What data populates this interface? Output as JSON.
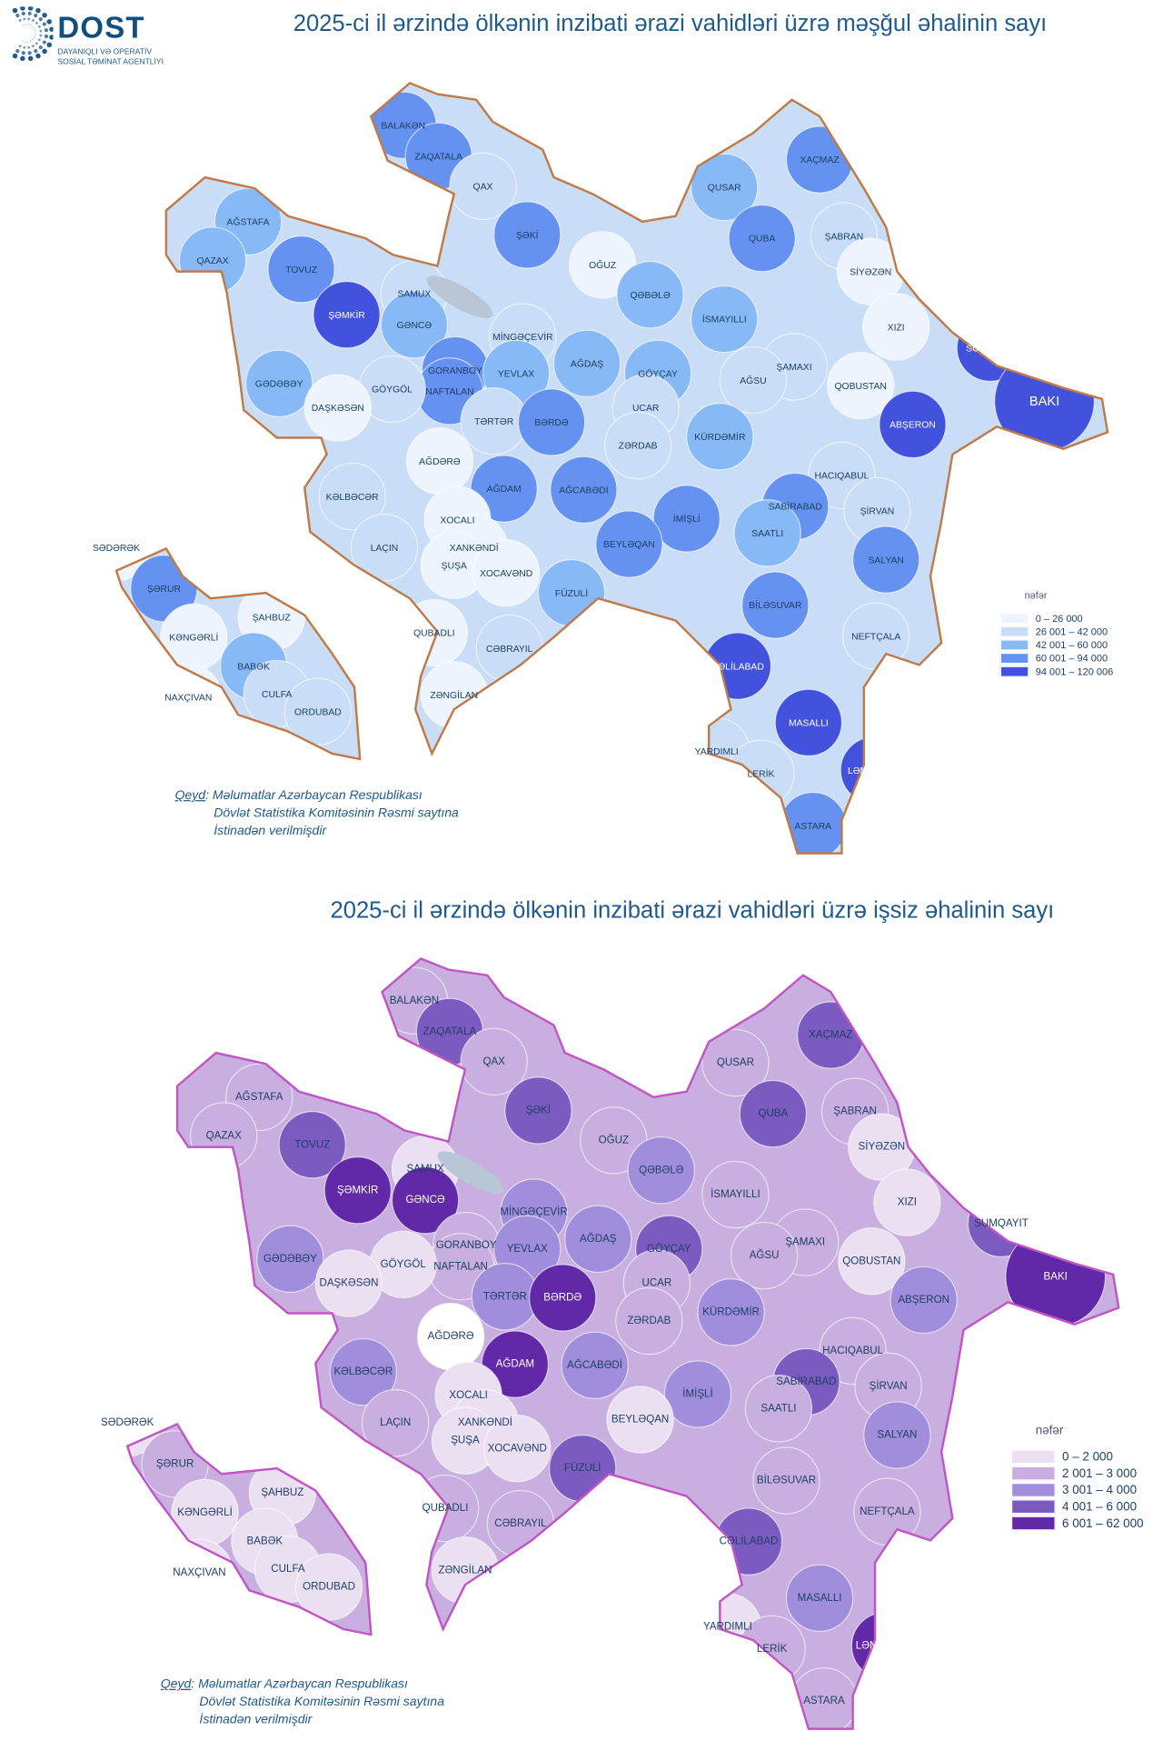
{
  "logo": {
    "name": "DOST",
    "line1": "DAYANIQLI VƏ OPERATİV",
    "line2": "SOSİAL TƏMİNAT AGENTLİYİ"
  },
  "maps": [
    {
      "title": "2025-ci il ərzində ölkənin inzibati ərazi vahidləri üzrə məşğul əhalinin sayı",
      "legend": {
        "unit": "nəfər",
        "bins": [
          "0 – 26 000",
          "26 001 – 42 000",
          "42 001 – 60 000",
          "60 001 – 94 000",
          "94 001 – 120 006"
        ],
        "colors": [
          "#eef4fd",
          "#c9ddf7",
          "#86b9f5",
          "#6592f0",
          "#4352dd"
        ]
      },
      "border_color": "#c07a48",
      "note": {
        "label": "Qeyd",
        "line1": ": Məlumatlar Azərbaycan Respublikası",
        "line2": "Dövlət Statistika Komitəsinin Rəsmi saytına",
        "line3": "İstinadən verilmişdir"
      },
      "regions": [
        {
          "name": "BALAKƏN",
          "bin": 3
        },
        {
          "name": "ZAQATALA",
          "bin": 3
        },
        {
          "name": "QAX",
          "bin": 1
        },
        {
          "name": "ŞƏKİ",
          "bin": 3
        },
        {
          "name": "AĞSTAFA",
          "bin": 2
        },
        {
          "name": "QAZAX",
          "bin": 2
        },
        {
          "name": "TOVUZ",
          "bin": 3
        },
        {
          "name": "ŞƏMKİR",
          "bin": 4
        },
        {
          "name": "SAMUX",
          "bin": 1
        },
        {
          "name": "GƏNCƏ",
          "bin": 2
        },
        {
          "name": "OĞUZ",
          "bin": 0
        },
        {
          "name": "QUSAR",
          "bin": 2
        },
        {
          "name": "XAÇMAZ",
          "bin": 3
        },
        {
          "name": "QUBA",
          "bin": 3
        },
        {
          "name": "ŞABRAN",
          "bin": 1
        },
        {
          "name": "SİYƏZƏN",
          "bin": 0
        },
        {
          "name": "QƏBƏLƏ",
          "bin": 2
        },
        {
          "name": "İSMAYILLI",
          "bin": 2
        },
        {
          "name": "XIZI",
          "bin": 0
        },
        {
          "name": "SUMQAYIT",
          "bin": 4
        },
        {
          "name": "MİNGƏÇEVİR",
          "bin": 1
        },
        {
          "name": "AĞDAŞ",
          "bin": 2
        },
        {
          "name": "GÖYÇAY",
          "bin": 2
        },
        {
          "name": "ŞAMAXI",
          "bin": 1
        },
        {
          "name": "AĞSU",
          "bin": 1
        },
        {
          "name": "QOBUSTAN",
          "bin": 0
        },
        {
          "name": "BAKI",
          "bin": 4
        },
        {
          "name": "ABŞERON",
          "bin": 4
        },
        {
          "name": "GORANBOY",
          "bin": 3
        },
        {
          "name": "NAFTALAN",
          "bin": 3
        },
        {
          "name": "YEVLAX",
          "bin": 2
        },
        {
          "name": "GÖYGÖL",
          "bin": 1
        },
        {
          "name": "GƏDƏBƏY",
          "bin": 2
        },
        {
          "name": "DAŞKƏSƏN",
          "bin": 0
        },
        {
          "name": "TƏRTƏR",
          "bin": 1
        },
        {
          "name": "BƏRDƏ",
          "bin": 3
        },
        {
          "name": "UCAR",
          "bin": 1
        },
        {
          "name": "ZƏRDAB",
          "bin": 1
        },
        {
          "name": "KÜRDƏMİR",
          "bin": 2
        },
        {
          "name": "AĞDƏRƏ",
          "bin": 0
        },
        {
          "name": "KƏLBƏCƏR",
          "bin": 1
        },
        {
          "name": "AĞDAM",
          "bin": 3
        },
        {
          "name": "AĞCABƏDİ",
          "bin": 3
        },
        {
          "name": "HACIQABUL",
          "bin": 1
        },
        {
          "name": "XOCALI",
          "bin": 0
        },
        {
          "name": "İMİŞLİ",
          "bin": 3
        },
        {
          "name": "SABİRABAD",
          "bin": 3
        },
        {
          "name": "ŞİRVAN",
          "bin": 1
        },
        {
          "name": "SAATLI",
          "bin": 2
        },
        {
          "name": "LAÇIN",
          "bin": 1
        },
        {
          "name": "XANKƏNDİ",
          "bin": 0
        },
        {
          "name": "ŞUŞA",
          "bin": 0
        },
        {
          "name": "BEYLƏQAN",
          "bin": 3
        },
        {
          "name": "XOCAVƏND",
          "bin": 0
        },
        {
          "name": "SALYAN",
          "bin": 3
        },
        {
          "name": "FÜZULİ",
          "bin": 2
        },
        {
          "name": "BİLƏSUVAR",
          "bin": 3
        },
        {
          "name": "NEFTÇALA",
          "bin": 1
        },
        {
          "name": "QUBADLI",
          "bin": 0
        },
        {
          "name": "CƏBRAYIL",
          "bin": 1
        },
        {
          "name": "ZƏNGİLAN",
          "bin": 0
        },
        {
          "name": "CƏLİLABAD",
          "bin": 4
        },
        {
          "name": "MASALLI",
          "bin": 4
        },
        {
          "name": "YARDIMLI",
          "bin": 1
        },
        {
          "name": "LERİK",
          "bin": 1
        },
        {
          "name": "LƏNKƏRAN",
          "bin": 4
        },
        {
          "name": "ASTARA",
          "bin": 3
        },
        {
          "name": "SƏDƏRƏK",
          "bin": 0
        },
        {
          "name": "ŞƏRUR",
          "bin": 3
        },
        {
          "name": "ŞAHBUZ",
          "bin": 0
        },
        {
          "name": "KƏNGƏRLİ",
          "bin": 0
        },
        {
          "name": "BABƏK",
          "bin": 2
        },
        {
          "name": "CULFA",
          "bin": 1
        },
        {
          "name": "NAXÇIVAN",
          "bin": 0
        },
        {
          "name": "ORDUBAD",
          "bin": 1
        }
      ]
    },
    {
      "title": "2025-ci il ərzində ölkənin inzibati ərazi vahidləri üzrə işsiz əhalinin sayı",
      "legend": {
        "unit": "nəfər",
        "bins": [
          "0 – 2 000",
          "2 001 – 3 000",
          "3 001 – 4 000",
          "4 001 – 6 000",
          "6 001 – 62 000"
        ],
        "colors": [
          "#ebe0f2",
          "#c8afe0",
          "#a08ddc",
          "#7c5bc0",
          "#6128a8"
        ]
      },
      "border_color": "#c255c4",
      "note": {
        "label": "Qeyd",
        "line1": ": Məlumatlar Azərbaycan Respublikası",
        "line2": "Dövlət Statistika Komitəsinin Rəsmi saytına",
        "line3": "İstinadən verilmişdir"
      },
      "regions": [
        {
          "name": "BALAKƏN",
          "bin": 1
        },
        {
          "name": "ZAQATALA",
          "bin": 3
        },
        {
          "name": "QAX",
          "bin": 1
        },
        {
          "name": "ŞƏKİ",
          "bin": 3
        },
        {
          "name": "AĞSTAFA",
          "bin": 1
        },
        {
          "name": "QAZAX",
          "bin": 1
        },
        {
          "name": "TOVUZ",
          "bin": 3
        },
        {
          "name": "ŞƏMKİR",
          "bin": 4
        },
        {
          "name": "SAMUX",
          "bin": 0
        },
        {
          "name": "GƏNCƏ",
          "bin": 4
        },
        {
          "name": "OĞUZ",
          "bin": 1
        },
        {
          "name": "QUSAR",
          "bin": 1
        },
        {
          "name": "XAÇMAZ",
          "bin": 3
        },
        {
          "name": "QUBA",
          "bin": 3
        },
        {
          "name": "ŞABRAN",
          "bin": 1
        },
        {
          "name": "SİYƏZƏN",
          "bin": 0
        },
        {
          "name": "QƏBƏLƏ",
          "bin": 2
        },
        {
          "name": "İSMAYILLI",
          "bin": 1
        },
        {
          "name": "XIZI",
          "bin": 0
        },
        {
          "name": "SUMQAYIT",
          "bin": 3
        },
        {
          "name": "MİNGƏÇEVİR",
          "bin": 2
        },
        {
          "name": "AĞDAŞ",
          "bin": 2
        },
        {
          "name": "GÖYÇAY",
          "bin": 3
        },
        {
          "name": "ŞAMAXI",
          "bin": 1
        },
        {
          "name": "AĞSU",
          "bin": 1
        },
        {
          "name": "QOBUSTAN",
          "bin": 0
        },
        {
          "name": "BAKI",
          "bin": 4
        },
        {
          "name": "ABŞERON",
          "bin": 2
        },
        {
          "name": "GORANBOY",
          "bin": 1
        },
        {
          "name": "NAFTALAN",
          "bin": 1
        },
        {
          "name": "YEVLAX",
          "bin": 2
        },
        {
          "name": "GÖYGÖL",
          "bin": 0
        },
        {
          "name": "GƏDƏBƏY",
          "bin": 2
        },
        {
          "name": "DAŞKƏSƏN",
          "bin": 0
        },
        {
          "name": "TƏRTƏR",
          "bin": 2
        },
        {
          "name": "BƏRDƏ",
          "bin": 4
        },
        {
          "name": "UCAR",
          "bin": 1
        },
        {
          "name": "ZƏRDAB",
          "bin": 1
        },
        {
          "name": "KÜRDƏMİR",
          "bin": 2
        },
        {
          "name": "AĞDƏRƏ",
          "bin": 0
        },
        {
          "name": "KƏLBƏCƏR",
          "bin": 2
        },
        {
          "name": "AĞDAM",
          "bin": 4
        },
        {
          "name": "AĞCABƏDİ",
          "bin": 2
        },
        {
          "name": "HACIQABUL",
          "bin": 1
        },
        {
          "name": "XOCALI",
          "bin": 0
        },
        {
          "name": "İMİŞLİ",
          "bin": 2
        },
        {
          "name": "SABİRABAD",
          "bin": 3
        },
        {
          "name": "ŞİRVAN",
          "bin": 1
        },
        {
          "name": "SAATLI",
          "bin": 1
        },
        {
          "name": "LAÇIN",
          "bin": 1
        },
        {
          "name": "XANKƏNDİ",
          "bin": 0
        },
        {
          "name": "ŞUŞA",
          "bin": 0
        },
        {
          "name": "BEYLƏQAN",
          "bin": 0
        },
        {
          "name": "XOCAVƏND",
          "bin": 0
        },
        {
          "name": "SALYAN",
          "bin": 2
        },
        {
          "name": "FÜZULİ",
          "bin": 3
        },
        {
          "name": "BİLƏSUVAR",
          "bin": 1
        },
        {
          "name": "NEFTÇALA",
          "bin": 1
        },
        {
          "name": "QUBADLI",
          "bin": 1
        },
        {
          "name": "CƏBRAYIL",
          "bin": 1
        },
        {
          "name": "ZƏNGİLAN",
          "bin": 0
        },
        {
          "name": "CƏLİLABAD",
          "bin": 3
        },
        {
          "name": "MASALLI",
          "bin": 2
        },
        {
          "name": "YARDIMLI",
          "bin": 0
        },
        {
          "name": "LERİK",
          "bin": 1
        },
        {
          "name": "LƏNKƏRAN",
          "bin": 4
        },
        {
          "name": "ASTARA",
          "bin": 1
        },
        {
          "name": "SƏDƏRƏK",
          "bin": 0
        },
        {
          "name": "ŞƏRUR",
          "bin": 1
        },
        {
          "name": "ŞAHBUZ",
          "bin": 0
        },
        {
          "name": "KƏNGƏRLİ",
          "bin": 0
        },
        {
          "name": "BABƏK",
          "bin": 0
        },
        {
          "name": "CULFA",
          "bin": 0
        },
        {
          "name": "NAXÇIVAN",
          "bin": 0
        },
        {
          "name": "ORDUBAD",
          "bin": 0
        }
      ]
    }
  ]
}
